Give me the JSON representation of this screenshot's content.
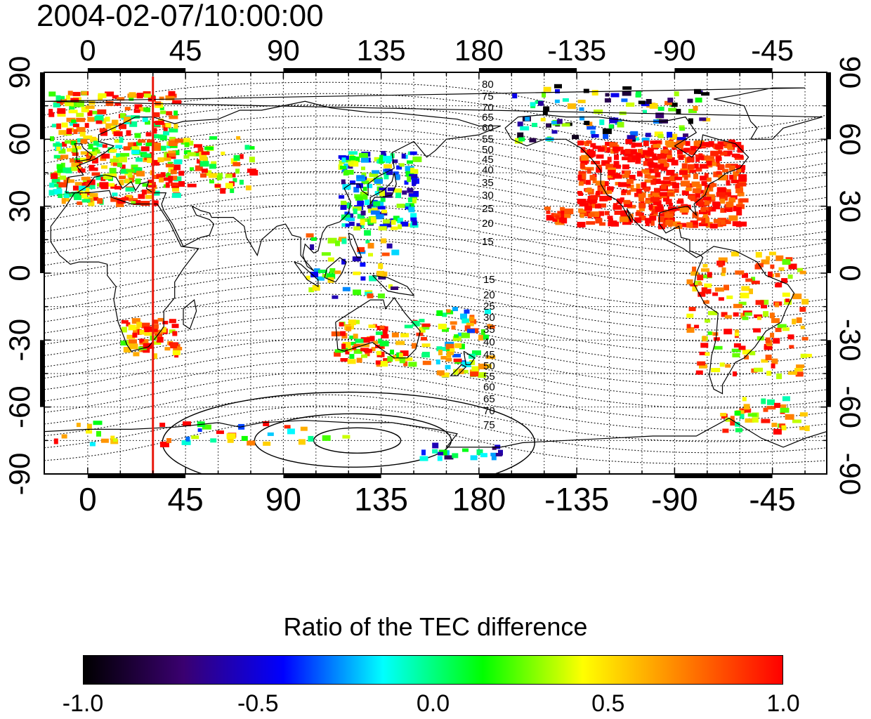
{
  "title": "2004-02-07/10:00:00",
  "map": {
    "projection": "cylindrical-equidistant",
    "lon_range": [
      -20,
      340
    ],
    "lat_range": [
      -90,
      90
    ],
    "top_lon_labels": [
      "0",
      "45",
      "90",
      "135",
      "180",
      "-135",
      "-90",
      "-45"
    ],
    "bottom_lon_labels": [
      "0",
      "45",
      "90",
      "135",
      "180",
      "-135",
      "-90",
      "-45"
    ],
    "left_lat_labels": [
      "90",
      "60",
      "30",
      "0",
      "-30",
      "-60",
      "-90"
    ],
    "right_lat_labels": [
      "90",
      "60",
      "30",
      "0",
      "-30",
      "-60",
      "-90"
    ],
    "grid": true,
    "meridian_marker": {
      "lon": 30,
      "color": "#e8180c"
    },
    "contour_labels_upper": [
      "80",
      "75",
      "70",
      "65",
      "60",
      "55",
      "50",
      "45",
      "40",
      "35",
      "30",
      "25",
      "20",
      "15"
    ],
    "contour_labels_lower": [
      "15",
      "20",
      "25",
      "30",
      "35",
      "40",
      "45",
      "50",
      "55",
      "60",
      "65",
      "70",
      "75"
    ],
    "coastline_color": "#000000",
    "contour_color": "#000000"
  },
  "colorbar": {
    "title": "Ratio of the TEC difference",
    "min": -1.0,
    "max": 1.0,
    "tick_labels": [
      "-1.0",
      "-0.5",
      "0.0",
      "0.5",
      "1.0"
    ],
    "stops": [
      "#000000",
      "#3a0070",
      "#0000ff",
      "#00ffff",
      "#00ff00",
      "#ffff00",
      "#ff8000",
      "#ff0000"
    ]
  }
}
